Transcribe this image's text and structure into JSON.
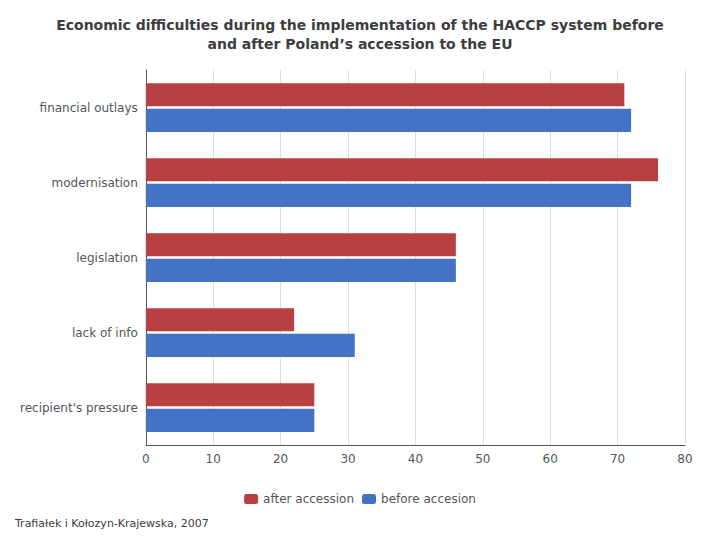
{
  "chart_data": {
    "type": "bar",
    "orientation": "horizontal",
    "title": "Economic difficulties during the implementation of the HACCP system before\nand after Poland’s accession to the EU",
    "categories": [
      "financial outlays",
      "modernisation",
      "legislation",
      "lack of info",
      "recipient's pressure"
    ],
    "series": [
      {
        "name": "after accession",
        "color": "#B94040",
        "values": [
          71,
          76,
          46,
          22,
          25
        ]
      },
      {
        "name": "before accesion",
        "color": "#4472C4",
        "values": [
          72,
          72,
          46,
          31,
          25
        ]
      }
    ],
    "xlim": [
      0,
      80
    ],
    "xticks": [
      0,
      10,
      20,
      30,
      40,
      50,
      60,
      70,
      80
    ],
    "grid": true,
    "legend": "bottom",
    "annotations": [
      "Trafiałek i Kołozyn-Krajewska, 2007"
    ]
  }
}
